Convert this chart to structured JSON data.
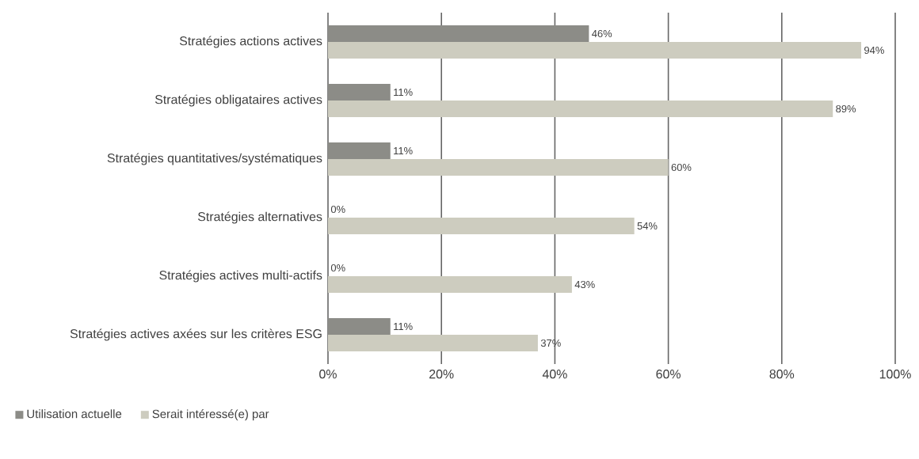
{
  "chart_data": {
    "type": "bar",
    "orientation": "horizontal",
    "categories": [
      "Stratégies actions actives",
      "Stratégies obligataires actives",
      "Stratégies quantitatives/systématiques",
      "Stratégies alternatives",
      "Stratégies actives multi-actifs",
      "Stratégies actives axées sur les critères ESG"
    ],
    "series": [
      {
        "name": "Utilisation actuelle",
        "color": "#8c8c87",
        "values": [
          46,
          11,
          11,
          0,
          0,
          11
        ],
        "value_labels": [
          "46%",
          "11%",
          "11%",
          "0%",
          "0%",
          "11%"
        ]
      },
      {
        "name": "Serait intéressé(e) par",
        "color": "#cdccbf",
        "values": [
          94,
          89,
          60,
          54,
          43,
          37
        ],
        "value_labels": [
          "94%",
          "89%",
          "60%",
          "54%",
          "43%",
          "37%"
        ]
      }
    ],
    "xlim": [
      0,
      100
    ],
    "xticks": [
      {
        "value": 0,
        "label": "0%"
      },
      {
        "value": 20,
        "label": "20%"
      },
      {
        "value": 40,
        "label": "40%"
      },
      {
        "value": 60,
        "label": "60%"
      },
      {
        "value": 80,
        "label": "80%"
      },
      {
        "value": 100,
        "label": "100%"
      }
    ],
    "grid": "x",
    "legend": "bottom left"
  }
}
